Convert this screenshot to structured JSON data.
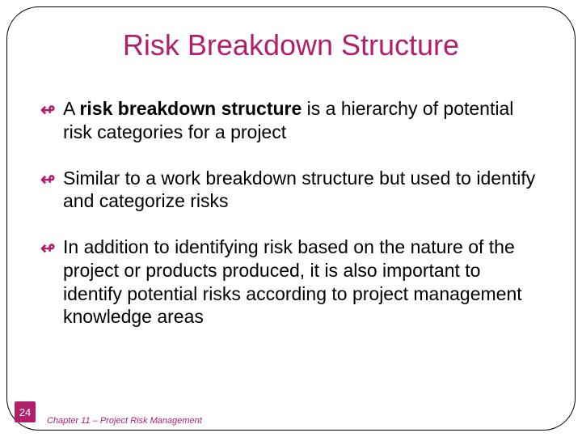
{
  "title": "Risk Breakdown Structure",
  "bullets": [
    {
      "prefix": "A ",
      "bold": "risk breakdown structure",
      "suffix": " is a hierarchy of potential risk categories for a project"
    },
    {
      "prefix": "Similar to a work breakdown structure but used to identify and categorize risks",
      "bold": "",
      "suffix": ""
    },
    {
      "prefix": "In addition to identifying risk based on the nature of the project or products produced, it is also important to identify potential risks according to project management knowledge areas",
      "bold": "",
      "suffix": ""
    }
  ],
  "pageNumber": "24",
  "footer": "Chapter 11 – Project Risk Management",
  "colors": {
    "accent": "#b11f6b",
    "text": "#000000",
    "background": "#ffffff"
  }
}
